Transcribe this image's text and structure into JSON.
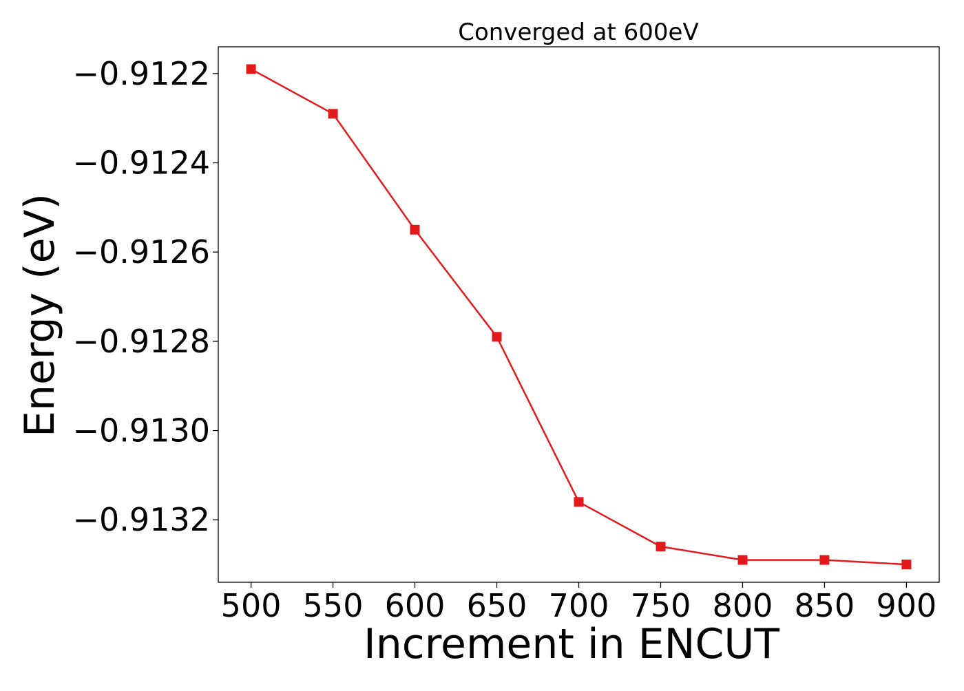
{
  "chart_data": {
    "type": "line",
    "title": "Converged at 600eV",
    "xlabel": "Increment in ENCUT",
    "ylabel": "Energy (eV)",
    "x": [
      500,
      550,
      600,
      650,
      700,
      750,
      800,
      850,
      900
    ],
    "series": [
      {
        "values": [
          -0.91219,
          -0.91229,
          -0.91255,
          -0.91279,
          -0.91316,
          -0.91326,
          -0.91329,
          -0.91329,
          -0.9133
        ],
        "color": "#e31a1c",
        "marker": "square"
      }
    ],
    "xticks": [
      500,
      550,
      600,
      650,
      700,
      750,
      800,
      850,
      900
    ],
    "xtick_labels": [
      "500",
      "550",
      "600",
      "650",
      "700",
      "750",
      "800",
      "850",
      "900"
    ],
    "yticks": [
      -0.9122,
      -0.9124,
      -0.9126,
      -0.9128,
      -0.913,
      -0.9132
    ],
    "ytick_labels": [
      "−0.9122",
      "−0.9124",
      "−0.9126",
      "−0.9128",
      "−0.9130",
      "−0.9132"
    ],
    "xlim": [
      480,
      920
    ],
    "ylim": [
      -0.91334,
      -0.91214
    ],
    "grid": false,
    "legend": "none"
  }
}
